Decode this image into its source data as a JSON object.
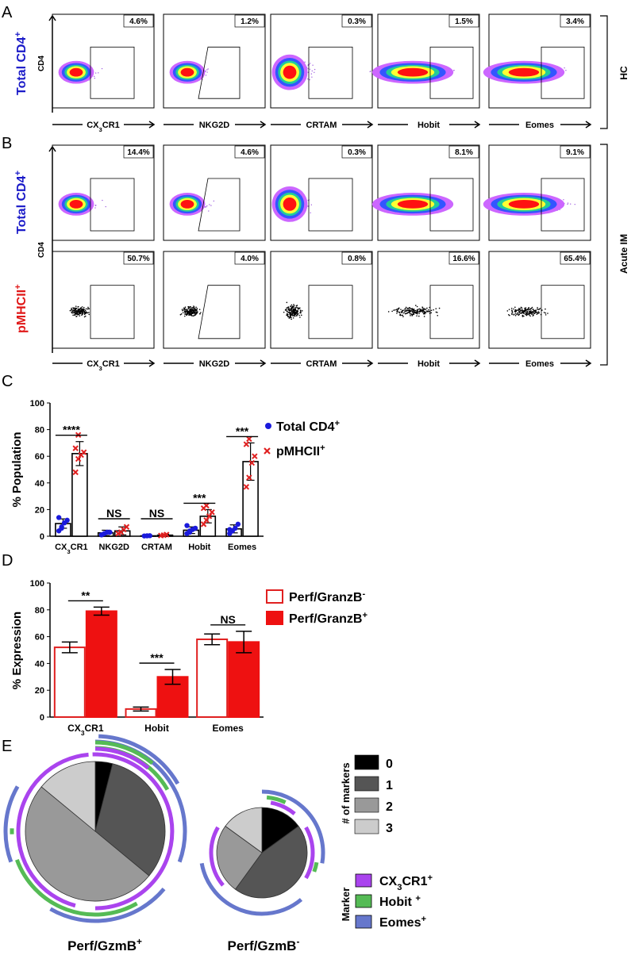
{
  "panels": {
    "A": {
      "letter": "A",
      "row_label": "Total CD4",
      "row_sup": "+",
      "y_axis": "CD4",
      "condition": "HC",
      "percents": [
        "4.6%",
        "1.2%",
        "0.3%",
        "1.5%",
        "3.4%"
      ]
    },
    "B": {
      "letter": "B",
      "rows": [
        {
          "label": "Total CD4",
          "sup": "+",
          "percents": [
            "14.4%",
            "4.6%",
            "0.3%",
            "8.1%",
            "9.1%"
          ]
        },
        {
          "label": "pMHCII",
          "sup": "+",
          "percents": [
            "50.7%",
            "4.0%",
            "0.8%",
            "16.6%",
            "65.4%"
          ]
        }
      ],
      "y_axis": "CD4",
      "condition": "Acute IM"
    },
    "x_markers": [
      {
        "base": "CX",
        "sub": "3",
        "rest": "CR1"
      },
      {
        "base": "NKG2D",
        "sub": "",
        "rest": ""
      },
      {
        "base": "CRTAM",
        "sub": "",
        "rest": ""
      },
      {
        "base": "Hobit",
        "sub": "",
        "rest": ""
      },
      {
        "base": "Eomes",
        "sub": "",
        "rest": ""
      }
    ],
    "C": {
      "letter": "C"
    },
    "D": {
      "letter": "D"
    },
    "E": {
      "letter": "E"
    }
  },
  "chart_data": [
    {
      "type": "bar",
      "panel": "C",
      "ylabel": "% Population",
      "ylim": [
        0,
        100
      ],
      "yticks": [
        0,
        20,
        40,
        60,
        80,
        100
      ],
      "categories": [
        "CX3CR1",
        "NKG2D",
        "CRTAM",
        "Hobit",
        "Eomes"
      ],
      "series": [
        {
          "name": "Total CD4+",
          "marker": "dot",
          "color": "#1a1adc",
          "values": [
            9.5,
            2.5,
            0.3,
            4.5,
            5.5
          ],
          "err": [
            3.5,
            2,
            0.3,
            2.5,
            3
          ],
          "points": [
            [
              4,
              7,
              10,
              12,
              14,
              6
            ],
            [
              1,
              2,
              3,
              3
            ],
            [
              0.2,
              0.3,
              0.4
            ],
            [
              2,
              3,
              5,
              6,
              8,
              4
            ],
            [
              2,
              4,
              6,
              9,
              5
            ]
          ]
        },
        {
          "name": "pMHCII+",
          "marker": "x",
          "color": "#e02020",
          "values": [
            62,
            4,
            0.8,
            15,
            56
          ],
          "err": [
            9,
            3,
            0.6,
            5,
            14
          ],
          "points": [
            [
              48,
              58,
              61,
              63,
              66,
              76
            ],
            [
              2,
              3,
              5,
              7
            ],
            [
              0.5,
              0.8,
              1.2
            ],
            [
              9,
              12,
              15,
              18,
              21,
              23
            ],
            [
              37,
              44,
              55,
              60,
              69,
              73
            ]
          ]
        }
      ],
      "significance": [
        "****",
        "NS",
        "NS",
        "***",
        "***"
      ]
    },
    {
      "type": "bar",
      "panel": "D",
      "ylabel": "% Expression",
      "ylim": [
        0,
        100
      ],
      "yticks": [
        0,
        20,
        40,
        60,
        80,
        100
      ],
      "categories": [
        "CX3CR1",
        "Hobit",
        "Eomes"
      ],
      "series": [
        {
          "name": "Perf/GranzB-",
          "legend_base": "Perf/GranzB",
          "legend_sup": "-",
          "fill": "#ffffff",
          "stroke": "#e02020",
          "values": [
            52,
            6,
            58
          ],
          "err": [
            4,
            1.5,
            4
          ]
        },
        {
          "name": "Perf/GranzB+",
          "legend_base": "Perf/GranzB",
          "legend_sup": "+",
          "fill": "#ee1111",
          "stroke": "#ee1111",
          "values": [
            79,
            30,
            56
          ],
          "err": [
            3,
            5.5,
            8
          ]
        }
      ],
      "significance": [
        "**",
        "***",
        "NS"
      ]
    },
    {
      "type": "pie",
      "panel": "E",
      "pies": [
        {
          "label": "Perf/GzmB",
          "sup": "+",
          "slices": [
            4,
            32,
            50,
            14
          ],
          "slice_categories": [
            "0",
            "1",
            "2",
            "3"
          ]
        },
        {
          "label": "Perf/GzmB",
          "sup": "-",
          "slices": [
            15,
            45,
            25,
            15
          ],
          "slice_categories": [
            "0",
            "1",
            "2",
            "3"
          ]
        }
      ],
      "legend_count": {
        "title": "# of markers",
        "items": [
          {
            "label": "0",
            "color": "#000000"
          },
          {
            "label": "1",
            "color": "#555555"
          },
          {
            "label": "2",
            "color": "#999999"
          },
          {
            "label": "3",
            "color": "#cccccc"
          }
        ]
      },
      "legend_marker": {
        "title": "Marker",
        "items": [
          {
            "base": "CX",
            "sub": "3",
            "rest": "CR1",
            "sup": "+",
            "color": "#aa44ee"
          },
          {
            "base": "Hobit ",
            "sub": "",
            "rest": "",
            "sup": "+",
            "color": "#55bb55"
          },
          {
            "base": "Eomes",
            "sub": "",
            "rest": "",
            "sup": "+",
            "color": "#6677cc"
          }
        ]
      }
    }
  ]
}
